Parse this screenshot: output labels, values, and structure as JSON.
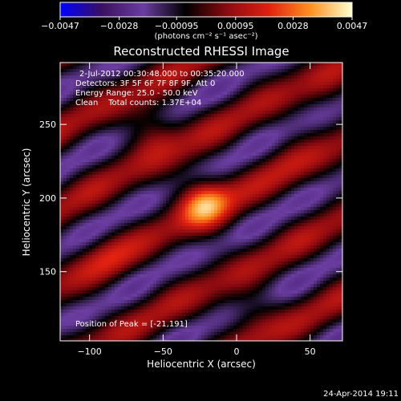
{
  "chart_data": {
    "type": "heatmap",
    "title": "Reconstructed RHESSI Image",
    "xlabel": "Heliocentric X (arcsec)",
    "ylabel": "Heliocentric Y (arcsec)",
    "xlim": [
      -120,
      72
    ],
    "ylim": [
      103,
      292
    ],
    "x_ticks": [
      -100,
      -50,
      0,
      50
    ],
    "x_tick_labels": [
      "−100",
      "−50",
      "0",
      "50"
    ],
    "y_ticks": [
      150,
      200,
      250
    ],
    "y_tick_labels": [
      "150",
      "200",
      "250"
    ],
    "annotations": [
      "2-Jul-2012 00:30:48.000 to 00:35:20.000",
      "Detectors: 3F 5F 6F 7F 8F 9F, Att 0",
      "Energy Range: 25.0 - 50.0 keV",
      "Clean    Total counts: 1.37E+04"
    ],
    "peak_label": "Position of Peak = [-21,191]",
    "peak": {
      "x": -21,
      "y": 191
    },
    "colorbar": {
      "min": -0.0047,
      "max": 0.0047,
      "ticks": [
        -0.0047,
        -0.0028,
        -0.00095,
        0.00095,
        0.0028,
        0.0047
      ],
      "tick_labels": [
        "−0.0047",
        "−0.0028",
        "−0.00095",
        "0.00095",
        "0.0028",
        "0.0047"
      ],
      "unit_label": "(photons cm⁻² s⁻¹ asec⁻²)",
      "colors": [
        "#0000ff",
        "#3a1060",
        "#6a3da0",
        "#000000",
        "#8a0a10",
        "#e02010",
        "#ff9020",
        "#ffffd0"
      ]
    },
    "sources": [
      {
        "x": -22,
        "y": 197,
        "value": 0.0047
      },
      {
        "x": -57,
        "y": 247,
        "value": 0.0028
      },
      {
        "x": -88,
        "y": 160,
        "value": 0.0022
      },
      {
        "x": 10,
        "y": 122,
        "value": 0.0022
      },
      {
        "x": 35,
        "y": 225,
        "value": 0.0018
      },
      {
        "x": 60,
        "y": 270,
        "value": 0.0016
      }
    ]
  },
  "footer": {
    "date": "24-Apr-2014 19:11"
  }
}
